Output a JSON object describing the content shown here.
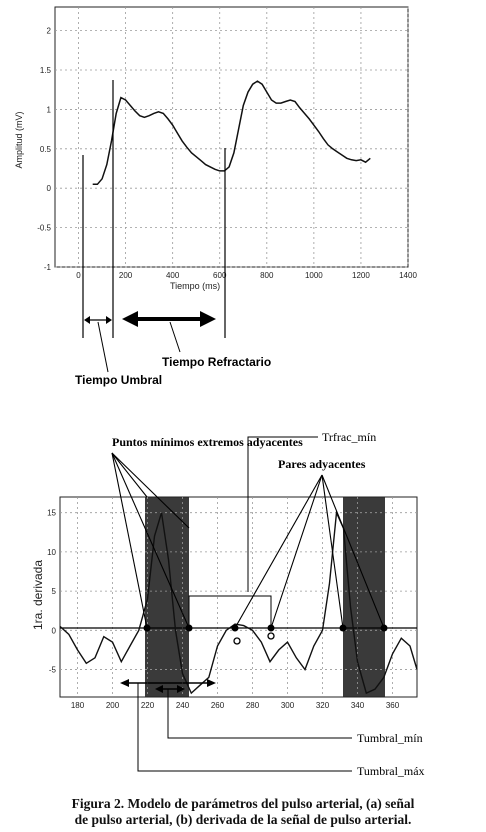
{
  "chart_data": [
    {
      "type": "line",
      "xlabel": "Tiempo (ms)",
      "ylabel": "Amplitud (mV)",
      "xlim": [
        -100,
        1400
      ],
      "ylim": [
        -1,
        2.3
      ],
      "xticks": [
        0,
        200,
        400,
        600,
        800,
        1000,
        1200,
        1400
      ],
      "yticks": [
        -1,
        -0.5,
        0,
        0.5,
        1,
        1.5,
        2
      ],
      "grid": true,
      "series": [
        {
          "x": [
            60,
            80,
            100,
            120,
            140,
            160,
            180,
            200,
            220,
            240,
            260,
            280,
            300,
            320,
            340,
            360,
            380,
            400,
            420,
            440,
            460,
            480,
            500,
            520,
            540,
            560,
            580,
            600,
            620,
            640,
            660,
            680,
            700,
            720,
            740,
            760,
            780,
            800,
            820,
            840,
            860,
            880,
            900,
            920,
            940,
            960,
            980,
            1000,
            1020,
            1040,
            1060,
            1080,
            1100,
            1120,
            1140,
            1160,
            1180,
            1200,
            1220,
            1240
          ],
          "y": [
            0.05,
            0.05,
            0.12,
            0.3,
            0.6,
            0.95,
            1.15,
            1.12,
            1.05,
            0.98,
            0.92,
            0.9,
            0.92,
            0.95,
            0.97,
            0.95,
            0.88,
            0.8,
            0.7,
            0.6,
            0.52,
            0.45,
            0.4,
            0.35,
            0.3,
            0.27,
            0.24,
            0.22,
            0.22,
            0.27,
            0.45,
            0.75,
            1.05,
            1.22,
            1.32,
            1.36,
            1.32,
            1.22,
            1.12,
            1.08,
            1.08,
            1.1,
            1.12,
            1.1,
            1.02,
            0.95,
            0.88,
            0.8,
            0.72,
            0.63,
            0.55,
            0.5,
            0.46,
            0.42,
            0.38,
            0.36,
            0.35,
            0.36,
            0.33,
            0.38
          ]
        }
      ],
      "annotations": [
        "Tiempo Umbral",
        "Tiempo Refractario"
      ]
    },
    {
      "type": "line",
      "xlabel": "",
      "ylabel": "1ra. derivada",
      "xlim": [
        170,
        374
      ],
      "ylim": [
        -8.5,
        17
      ],
      "xticks": [
        180,
        200,
        220,
        240,
        260,
        280,
        300,
        320,
        340,
        360
      ],
      "yticks": [
        -5,
        0,
        5,
        10,
        15
      ],
      "grid": true,
      "series": [
        {
          "x": [
            170,
            175,
            180,
            185,
            190,
            195,
            200,
            205,
            210,
            215,
            220,
            224,
            228,
            232,
            236,
            240,
            245,
            250,
            255,
            260,
            265,
            270,
            275,
            280,
            285,
            290,
            295,
            300,
            305,
            310,
            315,
            320,
            324,
            328,
            332,
            336,
            340,
            345,
            350,
            355,
            360,
            365,
            370,
            374
          ],
          "y": [
            0.5,
            -0.5,
            -2.5,
            -4.2,
            -3.5,
            -0.8,
            -1.5,
            -4,
            -2,
            0,
            4,
            12,
            15,
            9,
            0,
            -5.5,
            -8,
            -7,
            -6,
            -2,
            0,
            0.8,
            0.6,
            0,
            -1.5,
            -4,
            -2.5,
            -1.5,
            -3.5,
            -5,
            -2,
            0,
            6,
            15,
            13,
            3,
            -4,
            -8,
            -7.5,
            -6,
            -3,
            -1,
            -2,
            -5
          ]
        }
      ],
      "annotations": [
        "Puntos mínimos extremos adyacentes",
        "Trfrac_mín",
        "Pares adyacentes",
        "Tumbral_mín",
        "Tumbral_máx"
      ]
    }
  ],
  "caption": {
    "line1": "Figura 2. Modelo de parámetros del pulso arterial, (a) señal",
    "line2": "de pulso arterial, (b) derivada de la señal de pulso arterial."
  }
}
